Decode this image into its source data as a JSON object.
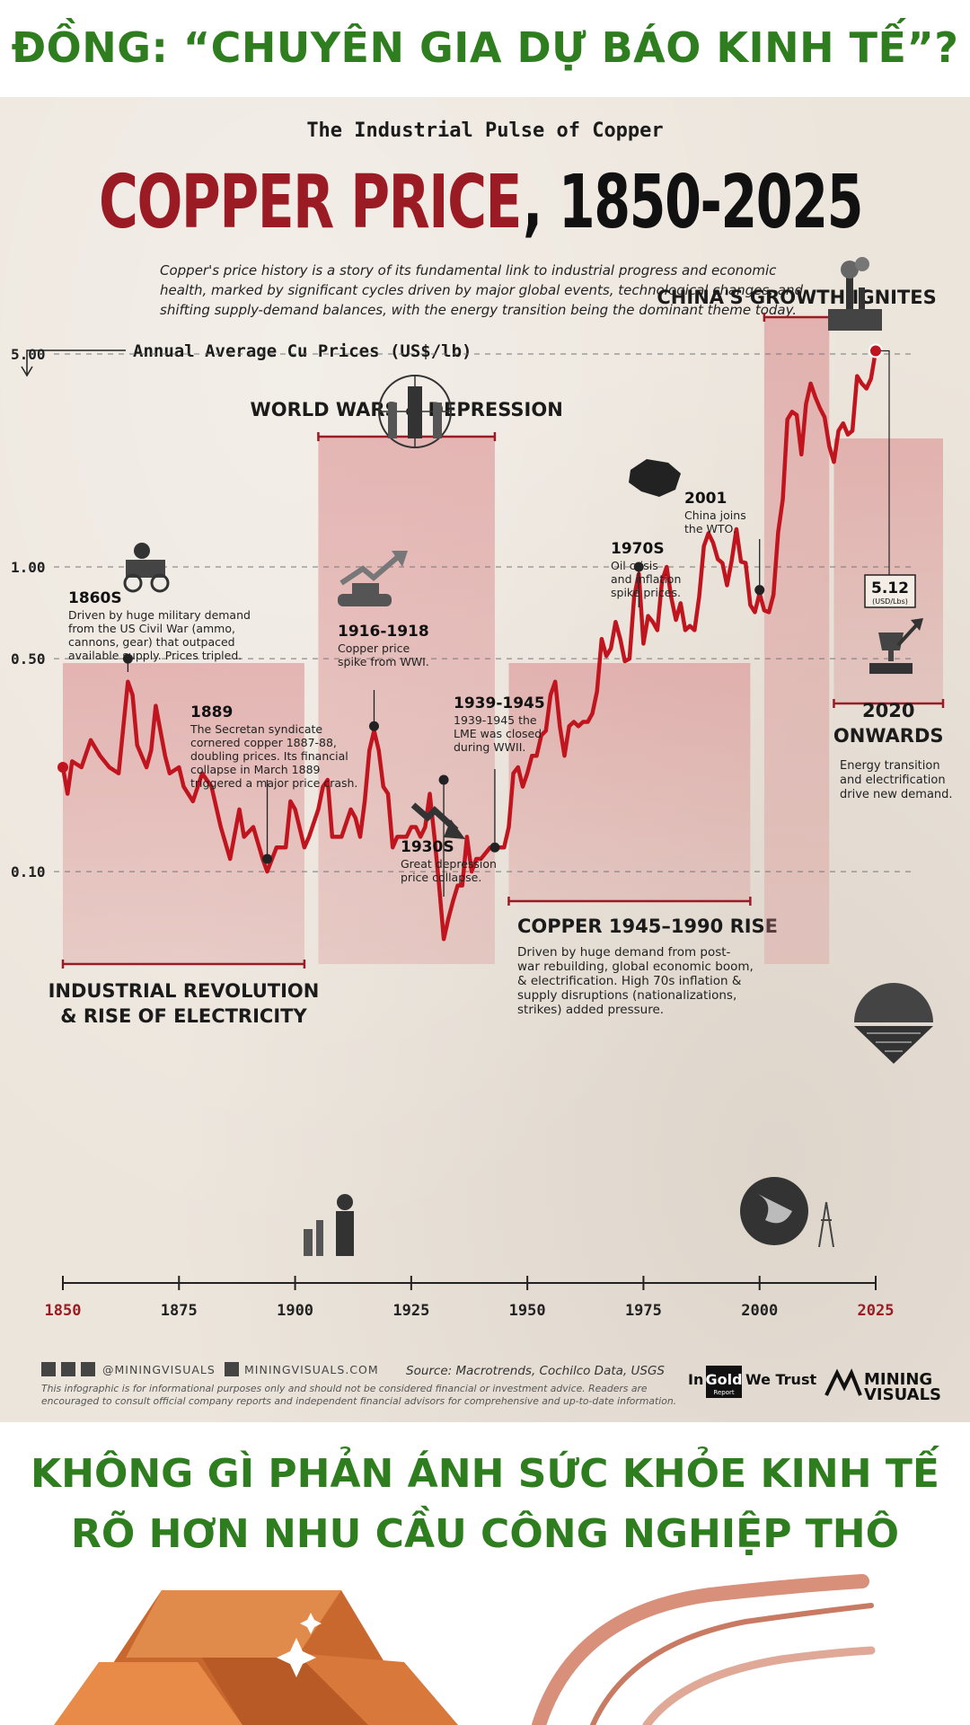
{
  "header": {
    "title": "ĐỒNG: “CHUYÊN GIA DỰ BÁO KINH TẾ”?"
  },
  "poster": {
    "kicker": "The Industrial Pulse of Copper",
    "title_red": "COPPER PRICE",
    "title_black": ", 1850-2025",
    "intro": [
      "Copper's price history is a story of its fundamental link to industrial progress and economic",
      "health, marked by significant cycles driven by major global events, technological changes, and",
      "shifting supply-demand balances, with the energy transition being the dominant theme today."
    ],
    "axis_label": "Annual Average Cu Prices (US$/lb)",
    "social": "@MININGVISUALS",
    "website": "MININGVISUALS.COM",
    "source": "Source: Macrotrends, Cochilco Data, USGS",
    "disclaimer": [
      "This infographic is for informational purposes only and should not be considered financial or investment advice. Readers are",
      "encouraged to consult official company reports and independent financial advisors for comprehensive and up-to-date information."
    ],
    "brand_ingold_1": "In",
    "brand_ingold_2": "Gold",
    "brand_ingold_3": "We Trust",
    "brand_ingold_4": "Report",
    "brand_mining_1": "MINING",
    "brand_mining_2": "VISUALS"
  },
  "eras": [
    {
      "name": "INDUSTRIAL REVOLUTION",
      "name2": "& RISE OF ELECTRICITY",
      "from": 1850,
      "to": 1902
    },
    {
      "name": "WORLD WARS & DEPRESSION",
      "from": 1905,
      "to": 1943
    },
    {
      "name": "COPPER 1945–1990 RISE",
      "from": 1946,
      "to": 1998,
      "desc": [
        "Driven by huge demand from post-",
        "war rebuilding, global economic boom,",
        "& electrification. High 70s inflation &",
        "supply disruptions (nationalizations,",
        "strikes) added pressure."
      ]
    },
    {
      "name": "CHINA'S GROWTH IGNITES",
      "from": 2001,
      "to": 2015
    },
    {
      "name": "2020",
      "name2": "ONWARDS",
      "from": 2016,
      "to": 2040,
      "desc": [
        "Energy transition",
        "and electrification",
        "drive new demand."
      ]
    }
  ],
  "annotations": [
    {
      "year": 1864,
      "price": 0.5,
      "title": "1860S",
      "lines": [
        "Driven by huge military demand",
        "from the US Civil War (ammo,",
        "cannons, gear) that outpaced",
        "available supply. Prices tripled."
      ]
    },
    {
      "year": 1894,
      "price": 0.11,
      "title": "1889",
      "lines": [
        "The Secretan syndicate",
        "cornered copper 1887-88,",
        "doubling prices. Its financial",
        "collapse in March 1889",
        "triggered a major price crash."
      ]
    },
    {
      "year": 1917,
      "price": 0.3,
      "title": "1916-1918",
      "lines": [
        "Copper price",
        "spike from WWI."
      ]
    },
    {
      "year": 1932,
      "price": 0.2,
      "title": "1930S",
      "lines": [
        "Great depression",
        "price collapse."
      ]
    },
    {
      "year": 1943,
      "price": 0.12,
      "title": "1939-1945",
      "lines": [
        "1939-1945 the",
        "LME was closed",
        "during WWII."
      ]
    },
    {
      "year": 1974,
      "price": 1.0,
      "title": "1970S",
      "lines": [
        "Oil crisis",
        "and inflation",
        "spike prices."
      ]
    },
    {
      "year": 2000,
      "price": 0.84,
      "title": "2001",
      "lines": [
        "China joins",
        "the WTO."
      ]
    }
  ],
  "latest": {
    "value": "5.12",
    "unit": "(USD/Lbs)"
  },
  "chart_data": {
    "type": "line",
    "title": "COPPER PRICE, 1850-2025",
    "ylabel": "Annual Average Cu Prices (US$/lb)",
    "y_scale": "log",
    "y_ticks": [
      0.1,
      0.5,
      1.0,
      5.0
    ],
    "y_tick_labels": [
      "0.10",
      "0.50",
      "1.00",
      "5.00"
    ],
    "x_ticks": [
      1850,
      1875,
      1900,
      1925,
      1950,
      1975,
      2000,
      2025
    ],
    "xlim": [
      1850,
      2025
    ],
    "ylim": [
      0.06,
      7.5
    ],
    "grid": "dashed horizontal at y ticks",
    "series": [
      {
        "x": [
          1850,
          1851,
          1852,
          1854,
          1856,
          1858,
          1860,
          1862,
          1864,
          1865,
          1866,
          1868,
          1869,
          1870,
          1872,
          1873,
          1875,
          1876,
          1878,
          1880,
          1882,
          1884,
          1886,
          1888,
          1889,
          1891,
          1893,
          1894,
          1896,
          1898,
          1899,
          1900,
          1902,
          1903,
          1905,
          1906,
          1907,
          1908,
          1910,
          1912,
          1913,
          1914,
          1915,
          1916,
          1917,
          1918,
          1919,
          1920,
          1921,
          1922,
          1924,
          1925,
          1926,
          1927,
          1928,
          1929,
          1930,
          1931,
          1932,
          1933,
          1934,
          1935,
          1936,
          1937,
          1938,
          1939,
          1940,
          1942,
          1945,
          1946,
          1947,
          1948,
          1949,
          1950,
          1951,
          1952,
          1953,
          1954,
          1955,
          1956,
          1957,
          1958,
          1959,
          1960,
          1961,
          1962,
          1963,
          1964,
          1965,
          1966,
          1967,
          1968,
          1969,
          1970,
          1971,
          1972,
          1973,
          1974,
          1975,
          1976,
          1977,
          1978,
          1979,
          1980,
          1981,
          1982,
          1983,
          1984,
          1985,
          1986,
          1987,
          1988,
          1989,
          1990,
          1991,
          1992,
          1993,
          1994,
          1995,
          1996,
          1997,
          1998,
          1999,
          2000,
          2001,
          2002,
          2003,
          2004,
          2005,
          2006,
          2007,
          2008,
          2009,
          2010,
          2011,
          2012,
          2013,
          2014,
          2015,
          2016,
          2017,
          2018,
          2019,
          2020,
          2021,
          2022,
          2023,
          2024,
          2025
        ],
        "values": [
          0.22,
          0.18,
          0.23,
          0.22,
          0.27,
          0.24,
          0.22,
          0.21,
          0.42,
          0.38,
          0.26,
          0.22,
          0.25,
          0.35,
          0.24,
          0.21,
          0.22,
          0.19,
          0.17,
          0.21,
          0.19,
          0.14,
          0.11,
          0.16,
          0.13,
          0.14,
          0.11,
          0.1,
          0.12,
          0.12,
          0.17,
          0.16,
          0.12,
          0.13,
          0.16,
          0.19,
          0.2,
          0.13,
          0.13,
          0.16,
          0.15,
          0.13,
          0.17,
          0.25,
          0.29,
          0.25,
          0.19,
          0.18,
          0.12,
          0.13,
          0.13,
          0.14,
          0.14,
          0.13,
          0.14,
          0.18,
          0.13,
          0.09,
          0.06,
          0.07,
          0.08,
          0.09,
          0.09,
          0.13,
          0.1,
          0.11,
          0.11,
          0.12,
          0.12,
          0.14,
          0.21,
          0.22,
          0.19,
          0.21,
          0.24,
          0.24,
          0.28,
          0.29,
          0.38,
          0.42,
          0.3,
          0.24,
          0.3,
          0.31,
          0.3,
          0.31,
          0.31,
          0.33,
          0.39,
          0.58,
          0.51,
          0.54,
          0.66,
          0.58,
          0.49,
          0.5,
          0.8,
          0.95,
          0.56,
          0.69,
          0.66,
          0.62,
          0.9,
          1.0,
          0.79,
          0.67,
          0.76,
          0.62,
          0.64,
          0.62,
          0.8,
          1.17,
          1.29,
          1.2,
          1.06,
          1.03,
          0.87,
          1.05,
          1.33,
          1.04,
          1.03,
          0.75,
          0.71,
          0.82,
          0.72,
          0.71,
          0.81,
          1.3,
          1.67,
          3.05,
          3.23,
          3.15,
          2.34,
          3.42,
          4.0,
          3.61,
          3.32,
          3.1,
          2.49,
          2.21,
          2.8,
          2.96,
          2.72,
          2.8,
          4.23,
          4.0,
          3.85,
          4.15,
          5.12
        ]
      }
    ]
  },
  "bottom": {
    "line1": "KHÔNG GÌ PHẢN ÁNH SỨC KHỎE KINH TẾ",
    "line2": "RÕ HƠN NHU CẦU CÔNG NGHIỆP THÔ"
  }
}
